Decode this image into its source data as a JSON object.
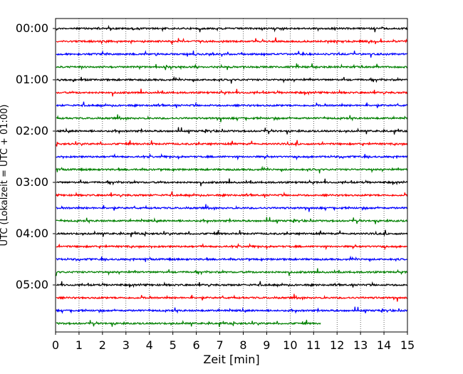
{
  "chart_data": {
    "type": "line",
    "title": "",
    "xlabel": "Zeit  [min]",
    "ylabel": "UTC (Lokalzeit = UTC + 01:00)",
    "xlim": [
      0,
      15
    ],
    "x_ticks": [
      0,
      1,
      2,
      3,
      4,
      5,
      6,
      7,
      8,
      9,
      10,
      11,
      12,
      13,
      14,
      15
    ],
    "x_tick_labels": [
      "0",
      "1",
      "2",
      "3",
      "4",
      "5",
      "6",
      "7",
      "8",
      "9",
      "10",
      "11",
      "12",
      "13",
      "14",
      "15"
    ],
    "x_grid": "dotted vertical lines at each minute",
    "y_tick_labels": [
      "00:00",
      "01:00",
      "02:00",
      "03:00",
      "04:00",
      "05:00"
    ],
    "y_tick_rows": [
      0,
      4,
      8,
      12,
      16,
      20
    ],
    "row_interval_minutes": 15,
    "row_count": 24,
    "last_row_end_minute": 11.3,
    "color_cycle": [
      "#000000",
      "#ff0000",
      "#0000ff",
      "#008000"
    ]
  }
}
